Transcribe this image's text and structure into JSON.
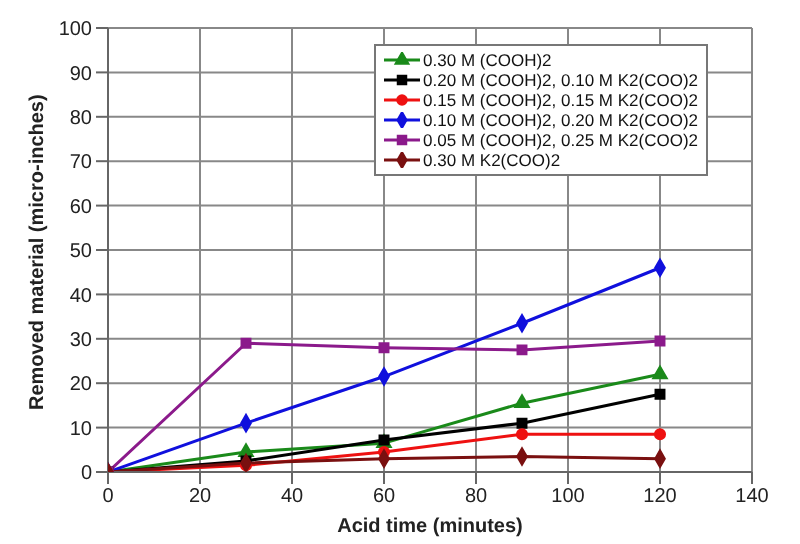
{
  "chart_data": {
    "type": "line",
    "xlabel": "Acid time   (minutes)",
    "ylabel": "Removed material   (micro-inches)",
    "x": [
      0,
      30,
      60,
      90,
      120
    ],
    "series": [
      {
        "name": "0.30 M (COOH)2",
        "color": "#1a8a1a",
        "marker": "triangle",
        "values": [
          0,
          4.5,
          6.5,
          15.5,
          22
        ]
      },
      {
        "name": "0.20 M (COOH)2, 0.10 M K2(COO)2",
        "color": "#000000",
        "marker": "square",
        "values": [
          0,
          2.5,
          7.2,
          11,
          17.5
        ]
      },
      {
        "name": "0.15 M (COOH)2, 0.15 M K2(COO)2",
        "color": "#ee1111",
        "marker": "circle",
        "values": [
          0,
          1.5,
          4.5,
          8.5,
          8.5
        ]
      },
      {
        "name": "0.10 M (COOH)2, 0.20 M K2(COO)2",
        "color": "#1010dd",
        "marker": "diamond",
        "values": [
          0,
          11,
          21.5,
          33.5,
          46
        ]
      },
      {
        "name": "0.05 M (COOH)2, 0.25 M K2(COO)2",
        "color": "#8b1a8b",
        "marker": "square",
        "values": [
          0,
          29,
          28,
          27.5,
          29.5
        ]
      },
      {
        "name": "0.30 M K2(COO)2",
        "color": "#7a1010",
        "marker": "diamond",
        "values": [
          0,
          2,
          3,
          3.5,
          3
        ]
      }
    ],
    "xlim": [
      0,
      140
    ],
    "xticks": [
      0,
      20,
      40,
      60,
      80,
      100,
      120,
      140
    ],
    "ylim": [
      0,
      100
    ],
    "yticks": [
      0,
      10,
      20,
      30,
      40,
      50,
      60,
      70,
      80,
      90,
      100
    ],
    "grid": true,
    "legend": "top right",
    "line_style": "solid"
  }
}
